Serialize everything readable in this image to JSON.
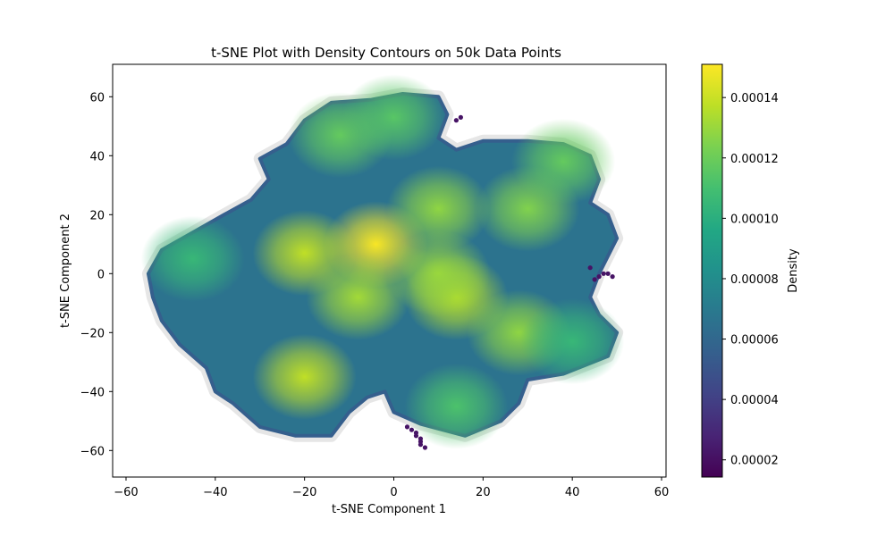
{
  "chart_data": {
    "type": "scatter",
    "title": "t-SNE Plot with Density Contours on 50k Data Points",
    "xlabel": "t-SNE Component 1",
    "ylabel": "t-SNE Component 2",
    "xlim": [
      -63,
      61
    ],
    "ylim": [
      -69,
      71
    ],
    "xticks": [
      -60,
      -40,
      -20,
      0,
      20,
      40,
      60
    ],
    "yticks": [
      -60,
      -40,
      -20,
      0,
      20,
      40,
      60
    ],
    "grid": false,
    "colorbar": {
      "label": "Density",
      "colormap": "viridis",
      "range": [
        1.43e-05,
        0.000151
      ],
      "ticks": [
        "0.00002",
        "0.00004",
        "0.00006",
        "0.00008",
        "0.00010",
        "0.00012",
        "0.00014"
      ],
      "tick_values": [
        2e-05,
        4e-05,
        6e-05,
        8e-05,
        0.0001,
        0.00012,
        0.00014
      ]
    },
    "density_peaks": [
      {
        "x": -4,
        "y": 10,
        "density": 0.00015
      },
      {
        "x": -20,
        "y": 7,
        "density": 0.000138
      },
      {
        "x": -8,
        "y": -8,
        "density": 0.000132
      },
      {
        "x": 14,
        "y": -8,
        "density": 0.000136
      },
      {
        "x": -20,
        "y": -35,
        "density": 0.000138
      },
      {
        "x": 10,
        "y": 22,
        "density": 0.000128
      },
      {
        "x": 30,
        "y": 22,
        "density": 0.000125
      },
      {
        "x": 28,
        "y": -20,
        "density": 0.000128
      },
      {
        "x": -12,
        "y": 47,
        "density": 0.000118
      },
      {
        "x": 0,
        "y": 53,
        "density": 0.000115
      },
      {
        "x": 38,
        "y": 38,
        "density": 0.000118
      },
      {
        "x": 14,
        "y": -45,
        "density": 0.000112
      },
      {
        "x": 40,
        "y": -23,
        "density": 0.000105
      },
      {
        "x": -45,
        "y": 5,
        "density": 0.000105
      },
      {
        "x": 10,
        "y": 0,
        "density": 0.00013
      }
    ],
    "outlier_points": [
      {
        "x": 3,
        "y": -52
      },
      {
        "x": 4,
        "y": -53
      },
      {
        "x": 5,
        "y": -54
      },
      {
        "x": 5,
        "y": -55
      },
      {
        "x": 6,
        "y": -56
      },
      {
        "x": 6,
        "y": -57
      },
      {
        "x": 6,
        "y": -58
      },
      {
        "x": 7,
        "y": -59
      },
      {
        "x": 47,
        "y": 0
      },
      {
        "x": 48,
        "y": 0
      },
      {
        "x": 49,
        "y": -1
      },
      {
        "x": 46,
        "y": -1
      },
      {
        "x": 45,
        "y": -2
      },
      {
        "x": 14,
        "y": 52
      },
      {
        "x": 15,
        "y": 53
      },
      {
        "x": 44,
        "y": 2
      }
    ]
  }
}
